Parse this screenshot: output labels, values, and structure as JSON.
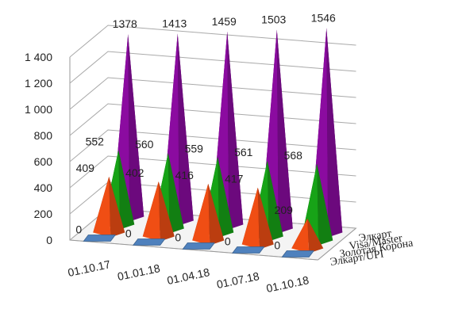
{
  "chart_data": {
    "type": "3d-cone-bar",
    "title": "",
    "xlabel": "",
    "ylabel": "",
    "ylim": [
      0,
      1400
    ],
    "yticks": [
      0,
      200,
      400,
      600,
      800,
      1000,
      1200,
      1400
    ],
    "ytick_labels": [
      "0",
      "200",
      "400",
      "600",
      "800",
      "1 000",
      "1 200",
      "1 400"
    ],
    "grid": true,
    "categories": [
      "01.10.17",
      "01.01.18",
      "01.04.18",
      "01.07.18",
      "01.10.18"
    ],
    "series": [
      {
        "name": "Элкарт/UPI",
        "color": "#4F81BD",
        "values": [
          0,
          0,
          0,
          0,
          0
        ]
      },
      {
        "name": "Золотая Корона",
        "color": "#F04E14",
        "values": [
          409,
          402,
          416,
          417,
          209
        ]
      },
      {
        "name": "Visa/Master",
        "color": "#17A317",
        "values": [
          552,
          560,
          559,
          561,
          568
        ]
      },
      {
        "name": "Элкарт",
        "color": "#8B0BA0",
        "values": [
          1378,
          1413,
          1459,
          1503,
          1546
        ]
      }
    ],
    "value_labels": [
      [
        "0",
        "0",
        "0",
        "0",
        "0"
      ],
      [
        "409",
        "402",
        "416",
        "417",
        "209"
      ],
      [
        "552",
        "560",
        "559",
        "561",
        "568"
      ],
      [
        "1378",
        "1413",
        "1459",
        "1503",
        "1546"
      ]
    ]
  }
}
